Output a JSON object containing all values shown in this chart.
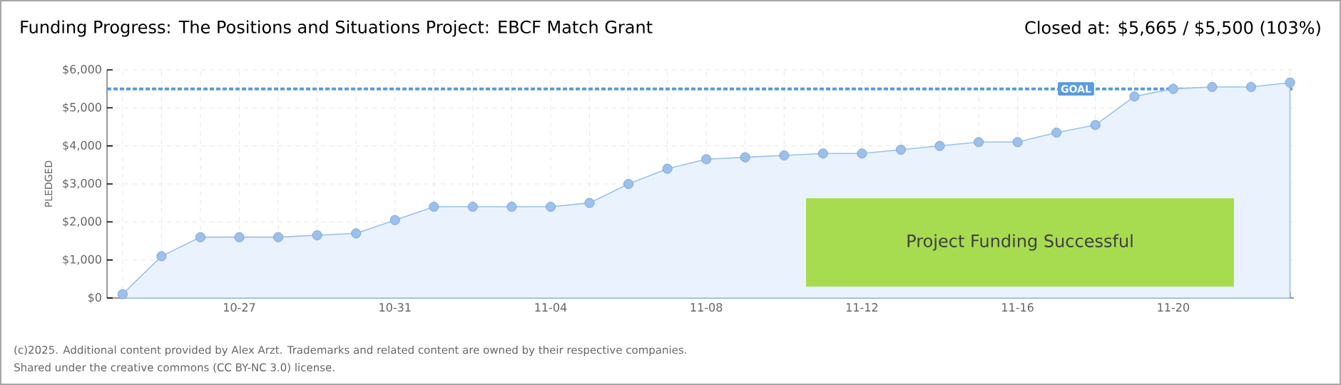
{
  "chart_data": {
    "type": "area",
    "title": "Funding Progress: The Positions and Situations Project: EBCF Match Grant",
    "ylabel": "PLEDGED",
    "annotations": [
      "Closed at: $5,665 / $5,500 (103%)",
      "Project Funding Successful",
      "(c)2025. Additional content provided by Alex Arzt. Trademarks and related content are owned by their respective companies.",
      "Shared under the creative commons (CC BY-NC 3.0) license."
    ],
    "categories": [
      null,
      null,
      null,
      "10-27",
      null,
      null,
      null,
      "10-31",
      null,
      null,
      null,
      "11-04",
      null,
      null,
      null,
      "11-08",
      null,
      null,
      null,
      "11-12",
      null,
      null,
      null,
      "11-16",
      null,
      null,
      null,
      "11-20",
      null,
      null,
      null
    ],
    "series": [
      {
        "color": "#eaf3fd",
        "values": [
          100,
          1100,
          1600,
          1600,
          1600,
          1650,
          1700,
          2050,
          2400,
          2400,
          2400,
          2400,
          2500,
          3000,
          3400,
          3650,
          3700,
          3750,
          3800,
          3800,
          3900,
          4000,
          4100,
          4100,
          4350,
          4550,
          5300,
          5500,
          5550,
          5550,
          5665
        ]
      }
    ],
    "ylim": [
      0,
      6000
    ],
    "yticks": [
      {
        "value": 0,
        "label": "$0"
      },
      {
        "value": 1000,
        "label": "$1,000"
      },
      {
        "value": 2000,
        "label": "$2,000"
      },
      {
        "value": 3000,
        "label": "$3,000"
      },
      {
        "value": 4000,
        "label": "$4,000"
      },
      {
        "value": 5000,
        "label": "$5,000"
      },
      {
        "value": 6000,
        "label": "$6,000"
      }
    ],
    "ref_lines": [
      {
        "axis": "y",
        "value": 5500,
        "label": "GOAL",
        "color": "#5a9ae0",
        "line_style": "dashed"
      }
    ],
    "grid": true,
    "marker": "circle"
  }
}
